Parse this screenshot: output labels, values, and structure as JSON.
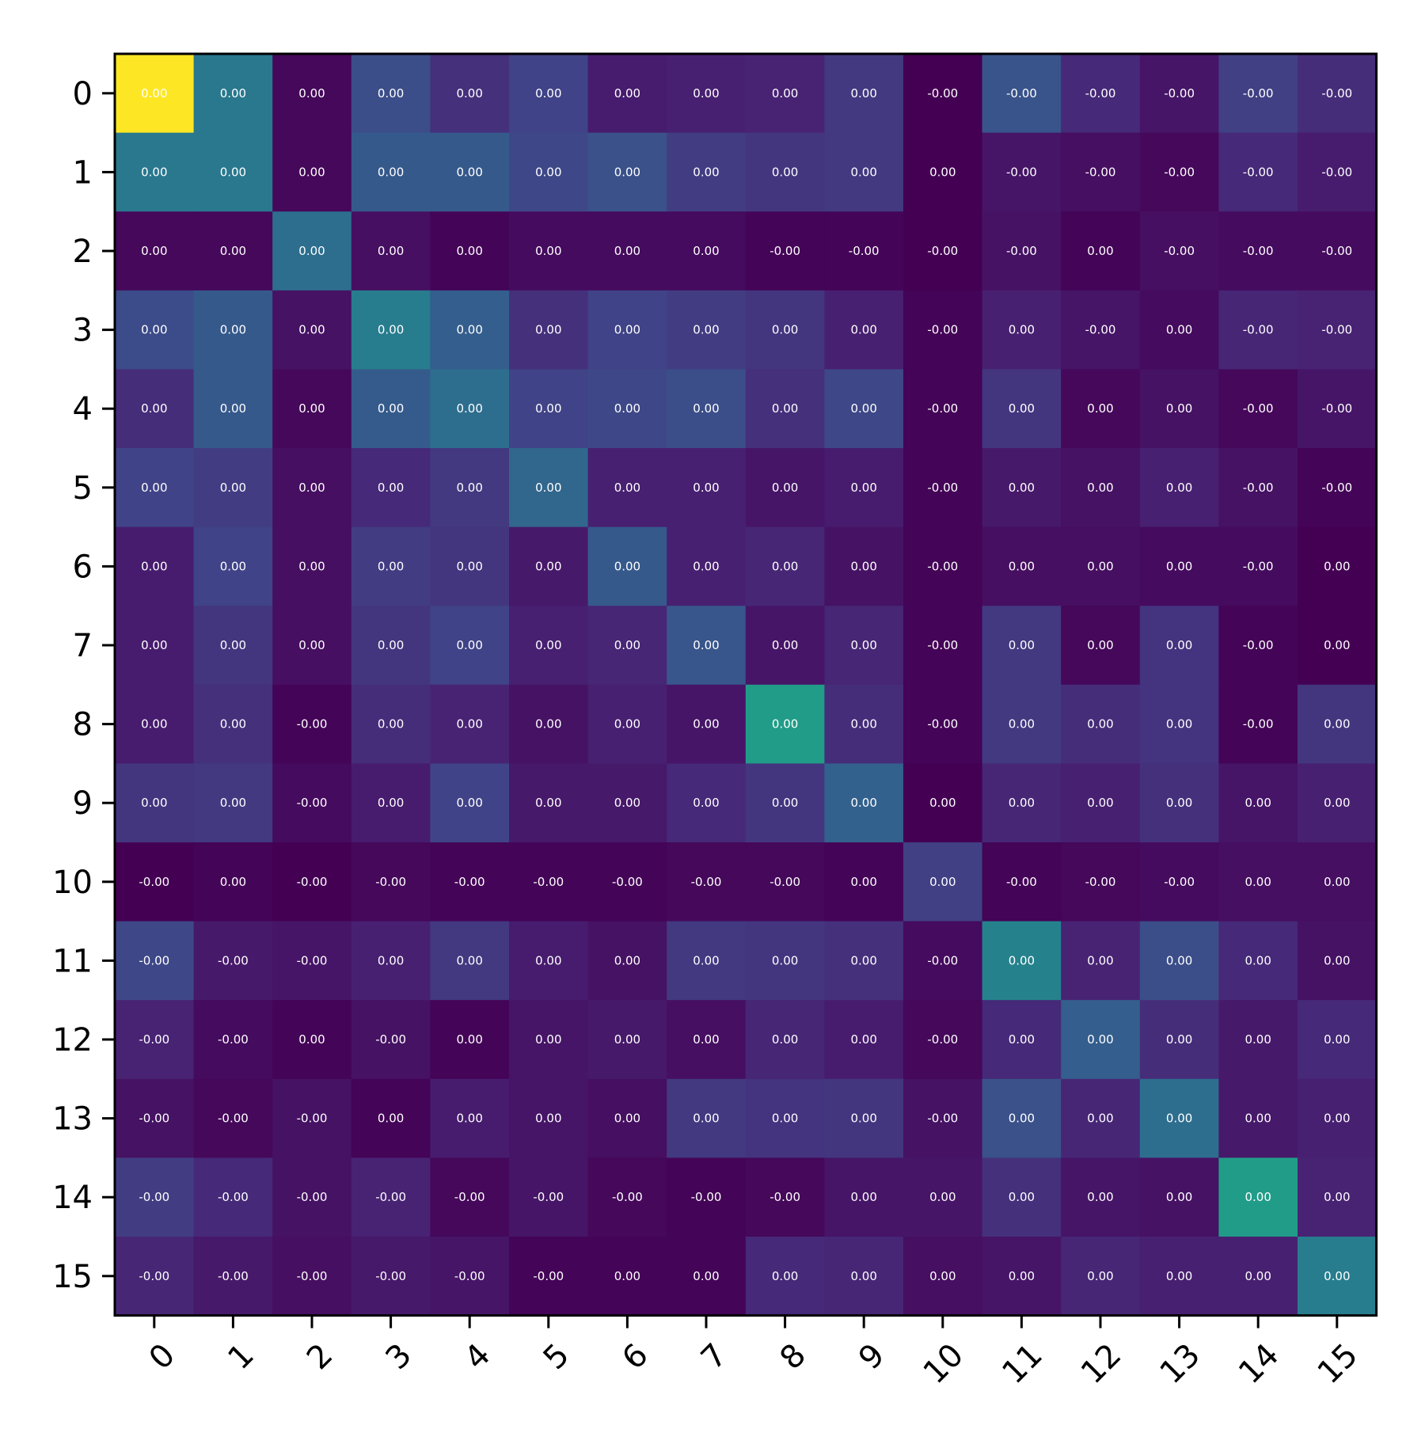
{
  "chart_data": {
    "type": "heatmap",
    "title": "",
    "xlabel": "",
    "ylabel": "",
    "colormap": "viridis",
    "grid": false,
    "legend": "none",
    "x_categories": [
      "0",
      "1",
      "2",
      "3",
      "4",
      "5",
      "6",
      "7",
      "8",
      "9",
      "10",
      "11",
      "12",
      "13",
      "14",
      "15"
    ],
    "y_categories": [
      "0",
      "1",
      "2",
      "3",
      "4",
      "5",
      "6",
      "7",
      "8",
      "9",
      "10",
      "11",
      "12",
      "13",
      "14",
      "15"
    ],
    "color_levels": [
      [
        1.0,
        0.4,
        0.02,
        0.24,
        0.14,
        0.2,
        0.08,
        0.09,
        0.1,
        0.17,
        0.0,
        0.26,
        0.12,
        0.06,
        0.19,
        0.13
      ],
      [
        0.4,
        0.4,
        0.02,
        0.28,
        0.28,
        0.22,
        0.25,
        0.18,
        0.16,
        0.17,
        0.0,
        0.06,
        0.04,
        0.02,
        0.12,
        0.08
      ],
      [
        0.02,
        0.02,
        0.36,
        0.04,
        0.01,
        0.03,
        0.03,
        0.03,
        0.01,
        0.01,
        0.0,
        0.05,
        0.01,
        0.04,
        0.03,
        0.03
      ],
      [
        0.23,
        0.28,
        0.05,
        0.42,
        0.3,
        0.14,
        0.2,
        0.18,
        0.16,
        0.09,
        0.01,
        0.09,
        0.06,
        0.03,
        0.11,
        0.1
      ],
      [
        0.13,
        0.28,
        0.02,
        0.29,
        0.36,
        0.2,
        0.22,
        0.24,
        0.14,
        0.22,
        0.01,
        0.16,
        0.02,
        0.05,
        0.02,
        0.06
      ],
      [
        0.2,
        0.18,
        0.04,
        0.12,
        0.17,
        0.33,
        0.09,
        0.09,
        0.06,
        0.08,
        0.01,
        0.07,
        0.05,
        0.09,
        0.05,
        0.01
      ],
      [
        0.08,
        0.2,
        0.04,
        0.18,
        0.16,
        0.07,
        0.28,
        0.09,
        0.11,
        0.05,
        0.01,
        0.04,
        0.04,
        0.03,
        0.03,
        0.0
      ],
      [
        0.08,
        0.16,
        0.04,
        0.16,
        0.2,
        0.09,
        0.11,
        0.27,
        0.06,
        0.11,
        0.01,
        0.17,
        0.02,
        0.15,
        0.01,
        0.0
      ],
      [
        0.08,
        0.14,
        0.01,
        0.13,
        0.1,
        0.05,
        0.09,
        0.06,
        0.55,
        0.13,
        0.01,
        0.17,
        0.13,
        0.15,
        0.01,
        0.16
      ],
      [
        0.16,
        0.17,
        0.03,
        0.08,
        0.2,
        0.07,
        0.07,
        0.12,
        0.16,
        0.31,
        0.0,
        0.11,
        0.09,
        0.14,
        0.06,
        0.09
      ],
      [
        0.0,
        0.01,
        0.0,
        0.02,
        0.01,
        0.01,
        0.01,
        0.02,
        0.02,
        0.01,
        0.19,
        0.01,
        0.02,
        0.03,
        0.04,
        0.04
      ],
      [
        0.22,
        0.07,
        0.06,
        0.09,
        0.17,
        0.08,
        0.05,
        0.17,
        0.16,
        0.14,
        0.03,
        0.44,
        0.1,
        0.24,
        0.12,
        0.05
      ],
      [
        0.1,
        0.03,
        0.01,
        0.05,
        0.01,
        0.06,
        0.07,
        0.04,
        0.11,
        0.08,
        0.02,
        0.12,
        0.3,
        0.13,
        0.07,
        0.12
      ],
      [
        0.05,
        0.02,
        0.05,
        0.01,
        0.08,
        0.06,
        0.04,
        0.17,
        0.15,
        0.16,
        0.05,
        0.25,
        0.11,
        0.36,
        0.07,
        0.09
      ],
      [
        0.18,
        0.12,
        0.05,
        0.1,
        0.02,
        0.06,
        0.02,
        0.01,
        0.02,
        0.06,
        0.06,
        0.14,
        0.06,
        0.05,
        0.55,
        0.1
      ],
      [
        0.11,
        0.07,
        0.04,
        0.07,
        0.06,
        0.01,
        0.01,
        0.01,
        0.12,
        0.11,
        0.04,
        0.06,
        0.11,
        0.09,
        0.09,
        0.42
      ]
    ],
    "cell_labels": [
      [
        "0.00",
        "0.00",
        "0.00",
        "0.00",
        "0.00",
        "0.00",
        "0.00",
        "0.00",
        "0.00",
        "0.00",
        "-0.00",
        "-0.00",
        "-0.00",
        "-0.00",
        "-0.00",
        "-0.00"
      ],
      [
        "0.00",
        "0.00",
        "0.00",
        "0.00",
        "0.00",
        "0.00",
        "0.00",
        "0.00",
        "0.00",
        "0.00",
        "0.00",
        "-0.00",
        "-0.00",
        "-0.00",
        "-0.00",
        "-0.00"
      ],
      [
        "0.00",
        "0.00",
        "0.00",
        "0.00",
        "0.00",
        "0.00",
        "0.00",
        "0.00",
        "-0.00",
        "-0.00",
        "-0.00",
        "-0.00",
        "0.00",
        "-0.00",
        "-0.00",
        "-0.00"
      ],
      [
        "0.00",
        "0.00",
        "0.00",
        "0.00",
        "0.00",
        "0.00",
        "0.00",
        "0.00",
        "0.00",
        "0.00",
        "-0.00",
        "0.00",
        "-0.00",
        "0.00",
        "-0.00",
        "-0.00"
      ],
      [
        "0.00",
        "0.00",
        "0.00",
        "0.00",
        "0.00",
        "0.00",
        "0.00",
        "0.00",
        "0.00",
        "0.00",
        "-0.00",
        "0.00",
        "0.00",
        "0.00",
        "-0.00",
        "-0.00"
      ],
      [
        "0.00",
        "0.00",
        "0.00",
        "0.00",
        "0.00",
        "0.00",
        "0.00",
        "0.00",
        "0.00",
        "0.00",
        "-0.00",
        "0.00",
        "0.00",
        "0.00",
        "-0.00",
        "-0.00"
      ],
      [
        "0.00",
        "0.00",
        "0.00",
        "0.00",
        "0.00",
        "0.00",
        "0.00",
        "0.00",
        "0.00",
        "0.00",
        "-0.00",
        "0.00",
        "0.00",
        "0.00",
        "-0.00",
        "0.00"
      ],
      [
        "0.00",
        "0.00",
        "0.00",
        "0.00",
        "0.00",
        "0.00",
        "0.00",
        "0.00",
        "0.00",
        "0.00",
        "-0.00",
        "0.00",
        "0.00",
        "0.00",
        "-0.00",
        "0.00"
      ],
      [
        "0.00",
        "0.00",
        "-0.00",
        "0.00",
        "0.00",
        "0.00",
        "0.00",
        "0.00",
        "0.00",
        "0.00",
        "-0.00",
        "0.00",
        "0.00",
        "0.00",
        "-0.00",
        "0.00"
      ],
      [
        "0.00",
        "0.00",
        "-0.00",
        "0.00",
        "0.00",
        "0.00",
        "0.00",
        "0.00",
        "0.00",
        "0.00",
        "0.00",
        "0.00",
        "0.00",
        "0.00",
        "0.00",
        "0.00"
      ],
      [
        "-0.00",
        "0.00",
        "-0.00",
        "-0.00",
        "-0.00",
        "-0.00",
        "-0.00",
        "-0.00",
        "-0.00",
        "0.00",
        "0.00",
        "-0.00",
        "-0.00",
        "-0.00",
        "0.00",
        "0.00"
      ],
      [
        "-0.00",
        "-0.00",
        "-0.00",
        "0.00",
        "0.00",
        "0.00",
        "0.00",
        "0.00",
        "0.00",
        "0.00",
        "-0.00",
        "0.00",
        "0.00",
        "0.00",
        "0.00",
        "0.00"
      ],
      [
        "-0.00",
        "-0.00",
        "0.00",
        "-0.00",
        "0.00",
        "0.00",
        "0.00",
        "0.00",
        "0.00",
        "0.00",
        "-0.00",
        "0.00",
        "0.00",
        "0.00",
        "0.00",
        "0.00"
      ],
      [
        "-0.00",
        "-0.00",
        "-0.00",
        "0.00",
        "0.00",
        "0.00",
        "0.00",
        "0.00",
        "0.00",
        "0.00",
        "-0.00",
        "0.00",
        "0.00",
        "0.00",
        "0.00",
        "0.00"
      ],
      [
        "-0.00",
        "-0.00",
        "-0.00",
        "-0.00",
        "-0.00",
        "-0.00",
        "-0.00",
        "-0.00",
        "-0.00",
        "0.00",
        "0.00",
        "0.00",
        "0.00",
        "0.00",
        "0.00",
        "0.00"
      ],
      [
        "-0.00",
        "-0.00",
        "-0.00",
        "-0.00",
        "-0.00",
        "-0.00",
        "0.00",
        "0.00",
        "0.00",
        "0.00",
        "0.00",
        "0.00",
        "0.00",
        "0.00",
        "0.00",
        "0.00"
      ]
    ]
  }
}
